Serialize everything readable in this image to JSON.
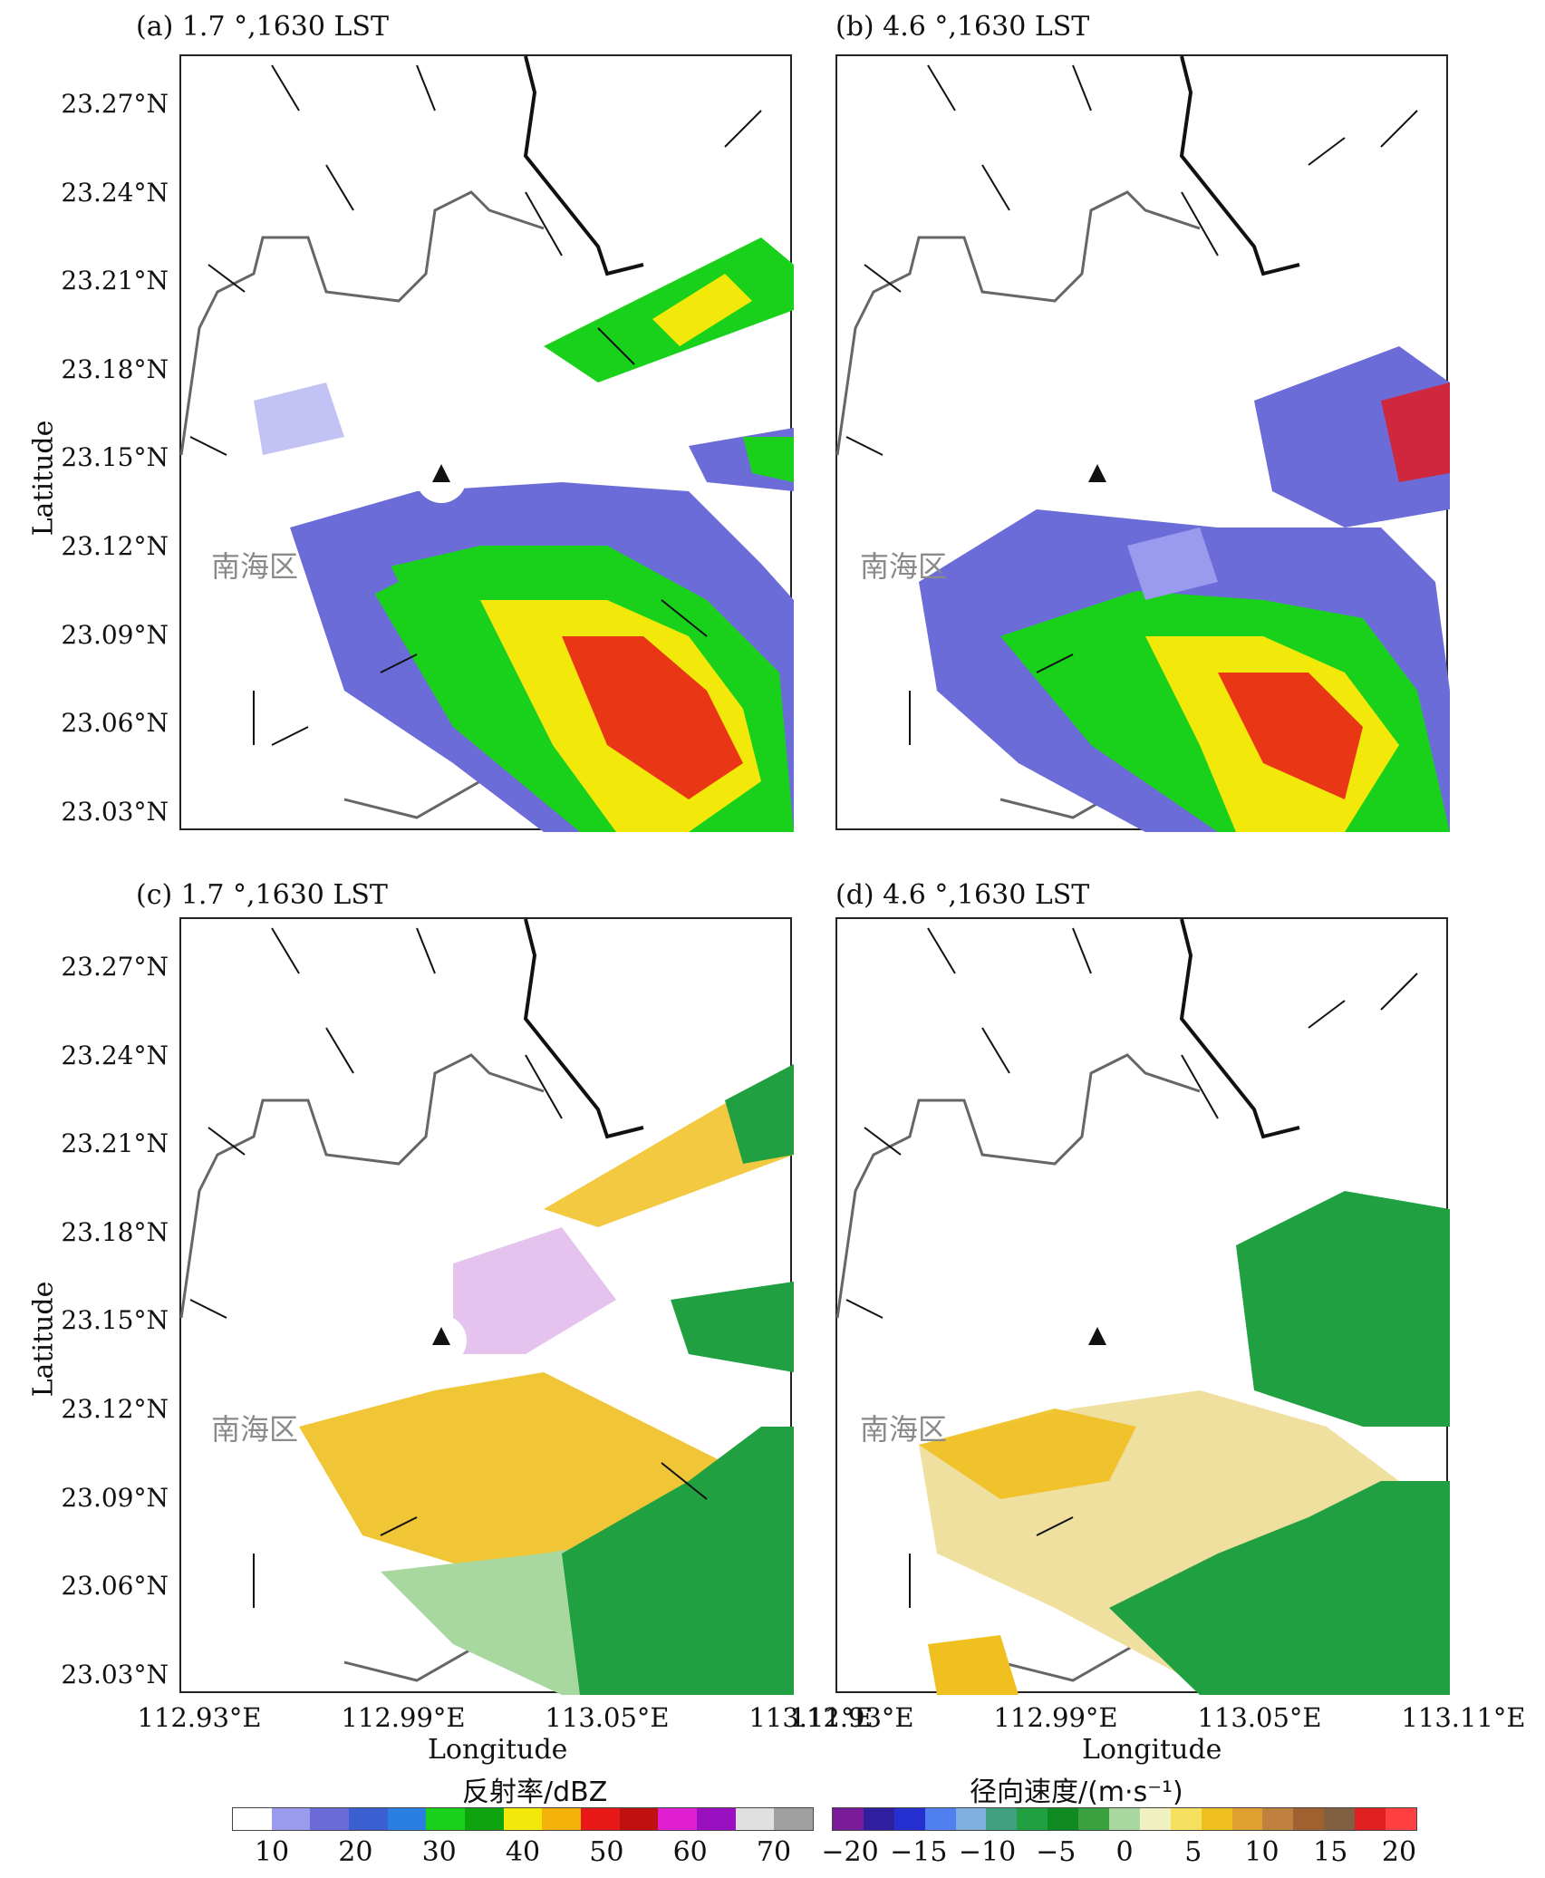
{
  "panels": [
    {
      "id": "a",
      "title": "(a) 1.7 °,1630 LST",
      "kind": "reflectivity"
    },
    {
      "id": "b",
      "title": "(b) 4.6 °,1630 LST",
      "kind": "reflectivity"
    },
    {
      "id": "c",
      "title": "(c) 1.7 °,1630 LST",
      "kind": "velocity"
    },
    {
      "id": "d",
      "title": "(d) 4.6 °,1630 LST",
      "kind": "velocity"
    }
  ],
  "lat_ticks": [
    "23.27°N",
    "23.24°N",
    "23.21°N",
    "23.18°N",
    "23.15°N",
    "23.12°N",
    "23.09°N",
    "23.06°N",
    "23.03°N"
  ],
  "lon_ticks": [
    "112.93°E",
    "112.99°E",
    "113.05°E",
    "113.11°E"
  ],
  "axis": {
    "x_label": "Longitude",
    "y_label": "Latitude"
  },
  "district_label": "南海区",
  "reflectivity_bar": {
    "title": "反射率/dBZ",
    "ticks": [
      "10",
      "20",
      "30",
      "40",
      "50",
      "60",
      "70"
    ],
    "colors": [
      "#ffffff",
      "#9a9aee",
      "#6c6cd8",
      "#3a5fd0",
      "#2a7fe0",
      "#19d11b",
      "#0fa40f",
      "#f2e90a",
      "#f4b20a",
      "#e81818",
      "#c01010",
      "#e020d0",
      "#9a10c0",
      "#e0e0e0",
      "#a0a0a0"
    ]
  },
  "velocity_bar": {
    "title": "径向速度/(m·s⁻¹)",
    "ticks": [
      "−20",
      "−15",
      "−10",
      "−5",
      "0",
      "5",
      "10",
      "15",
      "20"
    ],
    "colors": [
      "#7a1c9a",
      "#3020a0",
      "#2630d0",
      "#5080f0",
      "#80b0e0",
      "#40a080",
      "#20a040",
      "#0f8a20",
      "#3aa040",
      "#a8d8a0",
      "#f0f0c0",
      "#f6e060",
      "#f0c020",
      "#e0a030",
      "#c08040",
      "#a06030",
      "#806040",
      "#e02020",
      "#ff4040"
    ]
  }
}
